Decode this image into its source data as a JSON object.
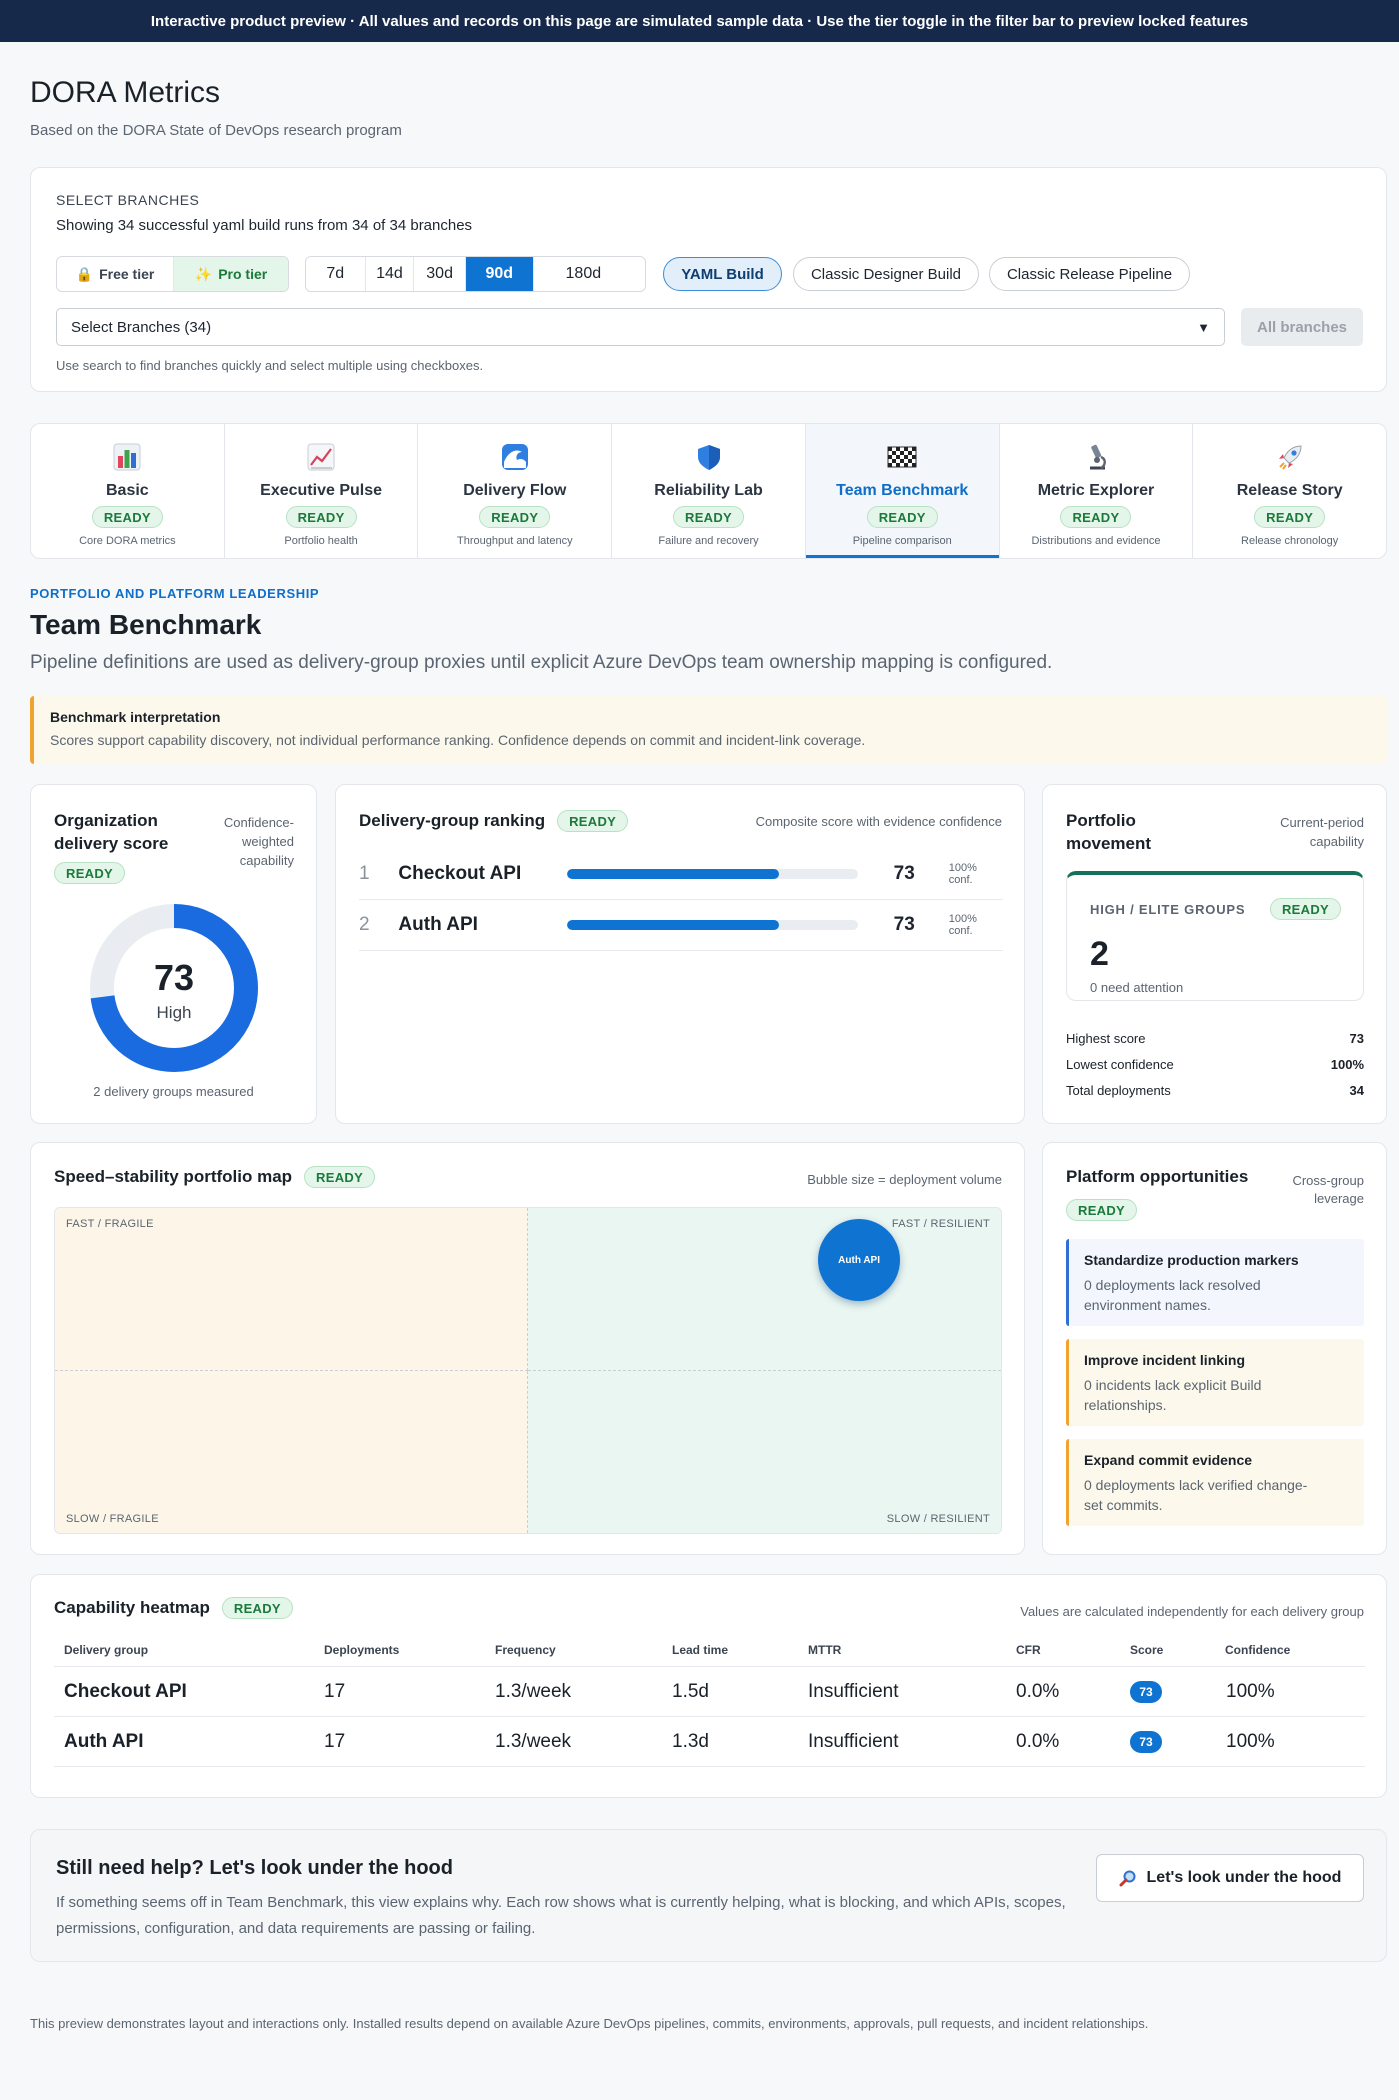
{
  "banner": "Interactive product preview · All values and records on this page are simulated sample data · Use the tier toggle in the filter bar to preview locked features",
  "header": {
    "title": "DORA Metrics",
    "subtitle": "Based on the DORA State of DevOps research program"
  },
  "filters": {
    "section_label": "SELECT BRANCHES",
    "showing": "Showing 34 successful yaml build runs from 34 of 34 branches",
    "tiers": {
      "free": "Free tier",
      "pro": "Pro tier",
      "selected": "Pro tier"
    },
    "ranges": [
      "7d",
      "14d",
      "30d",
      "90d",
      "180d"
    ],
    "selected_range": "90d",
    "pipelines": [
      "YAML Build",
      "Classic Designer Build",
      "Classic Release Pipeline"
    ],
    "selected_pipeline": "YAML Build",
    "branch_select": "Select Branches (34)",
    "all_branches": "All branches",
    "hint": "Use search to find branches quickly and select multiple using checkboxes."
  },
  "tabs": [
    {
      "name": "Basic",
      "status": "READY",
      "desc": "Core DORA metrics",
      "icon": "bar-chart-icon"
    },
    {
      "name": "Executive Pulse",
      "status": "READY",
      "desc": "Portfolio health",
      "icon": "trend-chart-icon"
    },
    {
      "name": "Delivery Flow",
      "status": "READY",
      "desc": "Throughput and latency",
      "icon": "wave-icon"
    },
    {
      "name": "Reliability Lab",
      "status": "READY",
      "desc": "Failure and recovery",
      "icon": "shield-icon"
    },
    {
      "name": "Team Benchmark",
      "status": "READY",
      "desc": "Pipeline comparison",
      "icon": "checkered-flag-icon",
      "active": true
    },
    {
      "name": "Metric Explorer",
      "status": "READY",
      "desc": "Distributions and evidence",
      "icon": "microscope-icon"
    },
    {
      "name": "Release Story",
      "status": "READY",
      "desc": "Release chronology",
      "icon": "rocket-icon"
    }
  ],
  "section": {
    "eyebrow": "PORTFOLIO AND PLATFORM LEADERSHIP",
    "title": "Team Benchmark",
    "subtitle": "Pipeline definitions are used as delivery-group proxies until explicit Azure DevOps team ownership mapping is configured."
  },
  "callout": {
    "title": "Benchmark interpretation",
    "body": "Scores support capability discovery, not individual performance ranking. Confidence depends on commit and incident-link coverage."
  },
  "org_score": {
    "title": "Organization delivery score",
    "meta": "Confidence-weighted capability",
    "status": "READY",
    "score": "73",
    "score_fraction": 0.73,
    "level": "High",
    "foot": "2 delivery groups measured"
  },
  "ranking": {
    "title": "Delivery-group ranking",
    "status": "READY",
    "meta": "Composite score with evidence confidence",
    "rows": [
      {
        "rank": "1",
        "name": "Checkout API",
        "score": "73",
        "score_value": 73,
        "confidence": "100% conf."
      },
      {
        "rank": "2",
        "name": "Auth API",
        "score": "73",
        "score_value": 73,
        "confidence": "100% conf."
      }
    ]
  },
  "movement": {
    "title": "Portfolio movement",
    "meta": "Current-period capability",
    "box_label": "HIGH / ELITE GROUPS",
    "status": "READY",
    "value": "2",
    "note": "0 need attention",
    "stats": [
      {
        "label": "Highest score",
        "value": "73"
      },
      {
        "label": "Lowest confidence",
        "value": "100%"
      },
      {
        "label": "Total deployments",
        "value": "34"
      }
    ]
  },
  "portfolio_map": {
    "title": "Speed–stability portfolio map",
    "status": "READY",
    "meta": "Bubble size = deployment volume",
    "quadrants": {
      "top_left": "FAST / FRAGILE",
      "top_right": "FAST / RESILIENT",
      "bottom_left": "SLOW / FRAGILE",
      "bottom_right": "SLOW / RESILIENT"
    },
    "bubbles": [
      {
        "label": "Auth API",
        "stability": 0.85,
        "speed": 0.84
      }
    ]
  },
  "opportunities": {
    "title": "Platform opportunities",
    "meta": "Cross-group leverage",
    "status": "READY",
    "items": [
      {
        "title": "Standardize production markers",
        "body": "0 deployments lack resolved environment names.",
        "color": "#2f6fd1",
        "bg": "#f3f7fd"
      },
      {
        "title": "Improve incident linking",
        "body": "0 incidents lack explicit Build relationships.",
        "color": "#f0a330",
        "bg": "#fdf8ec"
      },
      {
        "title": "Expand commit evidence",
        "body": "0 deployments lack verified change-set commits.",
        "color": "#f0a330",
        "bg": "#fdf8ec"
      }
    ]
  },
  "heatmap": {
    "title": "Capability heatmap",
    "status": "READY",
    "meta": "Values are calculated independently for each delivery group",
    "columns": [
      "Delivery group",
      "Deployments",
      "Frequency",
      "Lead time",
      "MTTR",
      "CFR",
      "Score",
      "Confidence"
    ],
    "rows": [
      [
        "Checkout API",
        "17",
        "1.3/week",
        "1.5d",
        "Insufficient",
        "0.0%",
        "73",
        "100%"
      ],
      [
        "Auth API",
        "17",
        "1.3/week",
        "1.3d",
        "Insufficient",
        "0.0%",
        "73",
        "100%"
      ]
    ]
  },
  "help": {
    "title": "Still need help? Let's look under the hood",
    "body": "If something seems off in Team Benchmark, this view explains why. Each row shows what is currently helping, what is blocking, and which APIs, scopes, permissions, configuration, and data requirements are passing or failing.",
    "button": "Let's look under the hood"
  },
  "footnote": "This preview demonstrates layout and interactions only. Installed results depend on available Azure DevOps pipelines, commits, environments, approvals, pull requests, and incident relationships.",
  "colors": {
    "accent": "#0f74d1",
    "banner": "#17294a",
    "ready_bg": "#e4f5e9",
    "ready_text": "#1b7a3b"
  }
}
